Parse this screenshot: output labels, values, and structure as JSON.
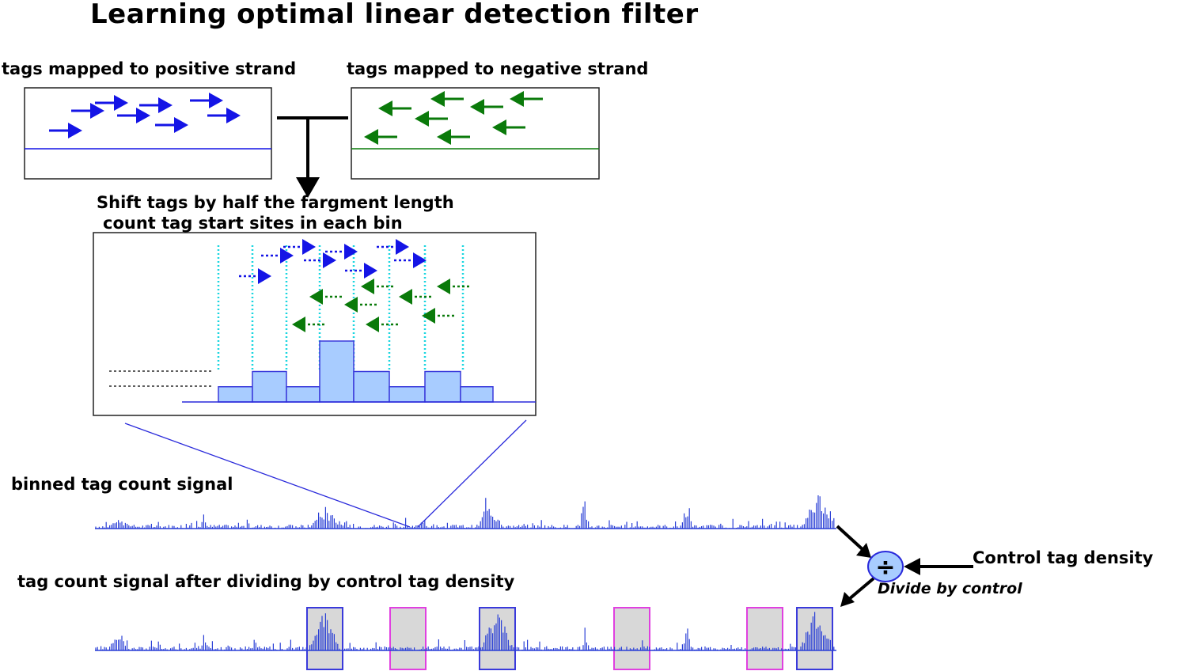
{
  "title": "Learning optimal linear detection filter",
  "labels": {
    "positive_strand": "tags mapped to positive strand",
    "negative_strand": "tags mapped to negative strand",
    "shift_line1": "Shift tags by half the fargment length",
    "shift_line2": "count tag start sites in each bin",
    "binned_signal": "binned tag count signal",
    "control_density": "Control tag density",
    "divided_signal": "tag count signal after dividing by control tag density",
    "divide_by_control": "Divide by control",
    "divide_symbol": "÷"
  },
  "histogram": {
    "y_ticks": [
      "2",
      "1"
    ],
    "bin_counts": [
      0.5,
      1,
      0.5,
      2,
      1,
      0.5,
      1,
      0.5
    ]
  },
  "colors": {
    "positive": "#1414e6",
    "negative": "#0a7a0a",
    "bin_fill": "#a8ccff",
    "bin_stroke": "#3a3adb",
    "cyan_guides": "#19d6e0",
    "signal": "#2a3fd6",
    "box_blue": "#3a3adb",
    "box_magenta": "#e040e0",
    "box_fill": "#d8d8d8"
  }
}
